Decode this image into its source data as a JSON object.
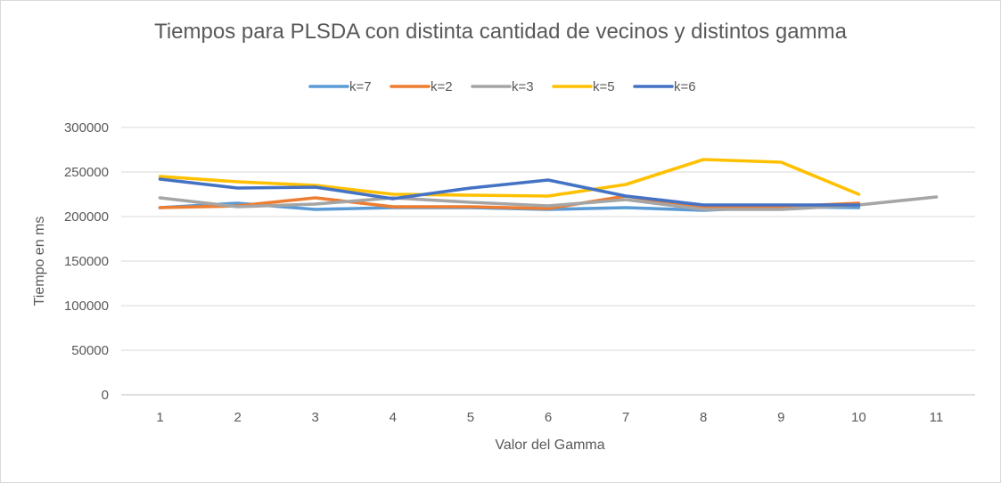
{
  "chart_data": {
    "type": "line",
    "title": "Tiempos para PLSDA con distinta cantidad de vecinos y distintos gamma",
    "xlabel": "Valor del Gamma",
    "ylabel": "Tiempo en ms",
    "x": [
      1,
      2,
      3,
      4,
      5,
      6,
      7,
      8,
      9,
      10,
      11
    ],
    "ylim": [
      0,
      300000
    ],
    "yticks": [
      0,
      50000,
      100000,
      150000,
      200000,
      250000,
      300000
    ],
    "grid": "horizontal",
    "legend_position": "top",
    "series": [
      {
        "name": "k=7",
        "color": "#5b9bd5",
        "values": [
          210000,
          215000,
          208000,
          210000,
          210000,
          208000,
          210000,
          207000,
          211000,
          210000,
          null
        ]
      },
      {
        "name": "k=2",
        "color": "#ed7d31",
        "values": [
          210000,
          212000,
          221000,
          211000,
          211000,
          209000,
          223000,
          210000,
          211000,
          215000,
          null
        ]
      },
      {
        "name": "k=3",
        "color": "#a5a5a5",
        "values": [
          221000,
          211000,
          214000,
          221000,
          216000,
          212000,
          219000,
          208000,
          208000,
          213000,
          222000
        ]
      },
      {
        "name": "k=5",
        "color": "#ffc000",
        "values": [
          245000,
          239000,
          235000,
          225000,
          224000,
          223000,
          236000,
          264000,
          261000,
          225000,
          null
        ]
      },
      {
        "name": "k=6",
        "color": "#4472c4",
        "values": [
          242000,
          232000,
          233000,
          220000,
          232000,
          241000,
          223000,
          213000,
          213000,
          213000,
          null
        ]
      }
    ]
  }
}
